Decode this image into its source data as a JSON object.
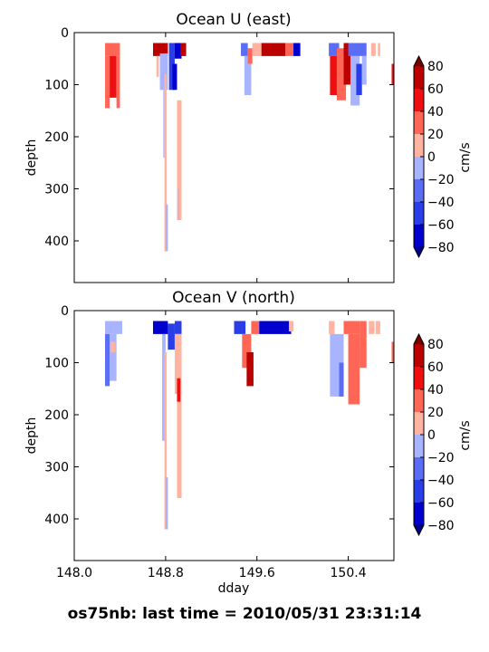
{
  "figure": {
    "suptitle": "os75nb: last time = 2010/05/31 23:31:14"
  },
  "chart_data": [
    {
      "type": "heatmap",
      "title": "Ocean U (east)",
      "xlabel": "",
      "ylabel": "depth",
      "xlim": [
        148.0,
        150.8
      ],
      "ylim": [
        480,
        0
      ],
      "x_ticks": [
        148.0,
        148.8,
        149.6,
        150.4
      ],
      "x_tick_labels": [
        "",
        "",
        "",
        ""
      ],
      "y_ticks": [
        0,
        100,
        200,
        300,
        400
      ],
      "y_tick_labels": [
        "0",
        "100",
        "200",
        "300",
        "400"
      ],
      "colorbar": {
        "label": "cm/s",
        "levels": [
          -80,
          -60,
          -40,
          -20,
          0,
          20,
          40,
          60,
          80
        ],
        "tick_labels": [
          "−80",
          "−60",
          "−40",
          "−20",
          "0",
          "20",
          "40",
          "60",
          "80"
        ],
        "colors": [
          "#0000cd",
          "#2a3ee8",
          "#5b6cf5",
          "#a8b4ff",
          "#ffb3a0",
          "#ff6655",
          "#ee1010",
          "#bb0000"
        ],
        "extend": "both"
      },
      "patches": [
        {
          "x": [
            148.27,
            148.4
          ],
          "depth": [
            20,
            45
          ],
          "value": 30
        },
        {
          "x": [
            148.27,
            148.31
          ],
          "depth": [
            45,
            145
          ],
          "value": 20
        },
        {
          "x": [
            148.31,
            148.37
          ],
          "depth": [
            45,
            125
          ],
          "value": 40
        },
        {
          "x": [
            148.37,
            148.4
          ],
          "depth": [
            45,
            145
          ],
          "value": 30
        },
        {
          "x": [
            148.69,
            148.82
          ],
          "depth": [
            20,
            45
          ],
          "value": 70
        },
        {
          "x": [
            148.72,
            148.74
          ],
          "depth": [
            45,
            85
          ],
          "value": 10
        },
        {
          "x": [
            148.75,
            148.82
          ],
          "depth": [
            40,
            110
          ],
          "value": -10
        },
        {
          "x": [
            148.78,
            148.79
          ],
          "depth": [
            110,
            240
          ],
          "value": -10
        },
        {
          "x": [
            148.79,
            148.81
          ],
          "depth": [
            80,
            420
          ],
          "value": 10
        },
        {
          "x": [
            148.8,
            148.82
          ],
          "depth": [
            330,
            420
          ],
          "value": -10
        },
        {
          "x": [
            148.83,
            148.88
          ],
          "depth": [
            20,
            110
          ],
          "value": -50
        },
        {
          "x": [
            148.86,
            148.9
          ],
          "depth": [
            60,
            110
          ],
          "value": -70
        },
        {
          "x": [
            148.88,
            148.94
          ],
          "depth": [
            20,
            50
          ],
          "value": -75
        },
        {
          "x": [
            148.9,
            148.94
          ],
          "depth": [
            130,
            360
          ],
          "value": 10
        },
        {
          "x": [
            148.91,
            148.92
          ],
          "depth": [
            300,
            360
          ],
          "value": -10
        },
        {
          "x": [
            148.93,
            148.98
          ],
          "depth": [
            20,
            45
          ],
          "value": 70
        },
        {
          "x": [
            149.46,
            149.52
          ],
          "depth": [
            20,
            45
          ],
          "value": -30
        },
        {
          "x": [
            149.49,
            149.55
          ],
          "depth": [
            45,
            120
          ],
          "value": -10
        },
        {
          "x": [
            149.52,
            149.56
          ],
          "depth": [
            30,
            60
          ],
          "value": 30
        },
        {
          "x": [
            149.56,
            149.65
          ],
          "depth": [
            20,
            45
          ],
          "value": 0
        },
        {
          "x": [
            149.64,
            149.85
          ],
          "depth": [
            20,
            45
          ],
          "value": 70
        },
        {
          "x": [
            149.85,
            149.92
          ],
          "depth": [
            20,
            45
          ],
          "value": 20
        },
        {
          "x": [
            149.92,
            149.98
          ],
          "depth": [
            20,
            45
          ],
          "value": -70
        },
        {
          "x": [
            150.23,
            150.32
          ],
          "depth": [
            20,
            45
          ],
          "value": -30
        },
        {
          "x": [
            150.24,
            150.3
          ],
          "depth": [
            45,
            120
          ],
          "value": 40
        },
        {
          "x": [
            150.3,
            150.38
          ],
          "depth": [
            30,
            130
          ],
          "value": 20
        },
        {
          "x": [
            150.36,
            150.42
          ],
          "depth": [
            20,
            100
          ],
          "value": 70
        },
        {
          "x": [
            150.4,
            150.56
          ],
          "depth": [
            20,
            45
          ],
          "value": -40
        },
        {
          "x": [
            150.42,
            150.5
          ],
          "depth": [
            45,
            140
          ],
          "value": -10
        },
        {
          "x": [
            150.47,
            150.52
          ],
          "depth": [
            60,
            120
          ],
          "value": -50
        },
        {
          "x": [
            150.52,
            150.56
          ],
          "depth": [
            45,
            100
          ],
          "value": -10
        },
        {
          "x": [
            150.6,
            150.64
          ],
          "depth": [
            20,
            45
          ],
          "value": 10
        },
        {
          "x": [
            150.66,
            150.68
          ],
          "depth": [
            20,
            45
          ],
          "value": 10
        },
        {
          "x": [
            150.78,
            150.8
          ],
          "depth": [
            60,
            100
          ],
          "value": 40
        }
      ]
    },
    {
      "type": "heatmap",
      "title": "Ocean V (north)",
      "xlabel": "dday",
      "ylabel": "depth",
      "xlim": [
        148.0,
        150.8
      ],
      "ylim": [
        480,
        0
      ],
      "x_ticks": [
        148.0,
        148.8,
        149.6,
        150.4
      ],
      "x_tick_labels": [
        "148.0",
        "148.8",
        "149.6",
        "150.4"
      ],
      "y_ticks": [
        0,
        100,
        200,
        300,
        400
      ],
      "y_tick_labels": [
        "0",
        "100",
        "200",
        "300",
        "400"
      ],
      "colorbar": {
        "label": "cm/s",
        "levels": [
          -80,
          -60,
          -40,
          -20,
          0,
          20,
          40,
          60,
          80
        ],
        "tick_labels": [
          "−80",
          "−60",
          "−40",
          "−20",
          "0",
          "20",
          "40",
          "60",
          "80"
        ],
        "colors": [
          "#0000cd",
          "#2a3ee8",
          "#5b6cf5",
          "#a8b4ff",
          "#ffb3a0",
          "#ff6655",
          "#ee1010",
          "#bb0000"
        ],
        "extend": "both"
      },
      "patches": [
        {
          "x": [
            148.27,
            148.42
          ],
          "depth": [
            20,
            45
          ],
          "value": -10
        },
        {
          "x": [
            148.27,
            148.31
          ],
          "depth": [
            45,
            145
          ],
          "value": -30
        },
        {
          "x": [
            148.31,
            148.37
          ],
          "depth": [
            45,
            135
          ],
          "value": -10
        },
        {
          "x": [
            148.32,
            148.36
          ],
          "depth": [
            60,
            80
          ],
          "value": 10
        },
        {
          "x": [
            148.69,
            148.82
          ],
          "depth": [
            20,
            45
          ],
          "value": -70
        },
        {
          "x": [
            148.82,
            148.88
          ],
          "depth": [
            25,
            75
          ],
          "value": -50
        },
        {
          "x": [
            148.77,
            148.8
          ],
          "depth": [
            45,
            250
          ],
          "value": -10
        },
        {
          "x": [
            148.79,
            148.81
          ],
          "depth": [
            80,
            420
          ],
          "value": 10
        },
        {
          "x": [
            148.8,
            148.82
          ],
          "depth": [
            320,
            420
          ],
          "value": -10
        },
        {
          "x": [
            148.88,
            148.94
          ],
          "depth": [
            20,
            45
          ],
          "value": -50
        },
        {
          "x": [
            148.88,
            148.94
          ],
          "depth": [
            45,
            160
          ],
          "value": 10
        },
        {
          "x": [
            148.9,
            148.94
          ],
          "depth": [
            140,
            360
          ],
          "value": 10
        },
        {
          "x": [
            148.9,
            148.93
          ],
          "depth": [
            130,
            175
          ],
          "value": 50
        },
        {
          "x": [
            149.4,
            149.5
          ],
          "depth": [
            20,
            45
          ],
          "value": -60
        },
        {
          "x": [
            149.47,
            149.55
          ],
          "depth": [
            45,
            110
          ],
          "value": 20
        },
        {
          "x": [
            149.51,
            149.57
          ],
          "depth": [
            80,
            145
          ],
          "value": 70
        },
        {
          "x": [
            149.55,
            149.62
          ],
          "depth": [
            20,
            45
          ],
          "value": 30
        },
        {
          "x": [
            149.62,
            149.9
          ],
          "depth": [
            20,
            45
          ],
          "value": -70
        },
        {
          "x": [
            149.88,
            149.92
          ],
          "depth": [
            20,
            40
          ],
          "value": 0
        },
        {
          "x": [
            150.23,
            150.28
          ],
          "depth": [
            20,
            45
          ],
          "value": 10
        },
        {
          "x": [
            150.24,
            150.36
          ],
          "depth": [
            45,
            165
          ],
          "value": -10
        },
        {
          "x": [
            150.32,
            150.36
          ],
          "depth": [
            100,
            165
          ],
          "value": -40
        },
        {
          "x": [
            150.36,
            150.5
          ],
          "depth": [
            20,
            45
          ],
          "value": 20
        },
        {
          "x": [
            150.4,
            150.5
          ],
          "depth": [
            45,
            180
          ],
          "value": 20
        },
        {
          "x": [
            150.5,
            150.56
          ],
          "depth": [
            20,
            110
          ],
          "value": 20
        },
        {
          "x": [
            150.58,
            150.63
          ],
          "depth": [
            20,
            45
          ],
          "value": 10
        },
        {
          "x": [
            150.64,
            150.68
          ],
          "depth": [
            20,
            45
          ],
          "value": 10
        },
        {
          "x": [
            150.78,
            150.8
          ],
          "depth": [
            60,
            100
          ],
          "value": 30
        }
      ]
    }
  ]
}
